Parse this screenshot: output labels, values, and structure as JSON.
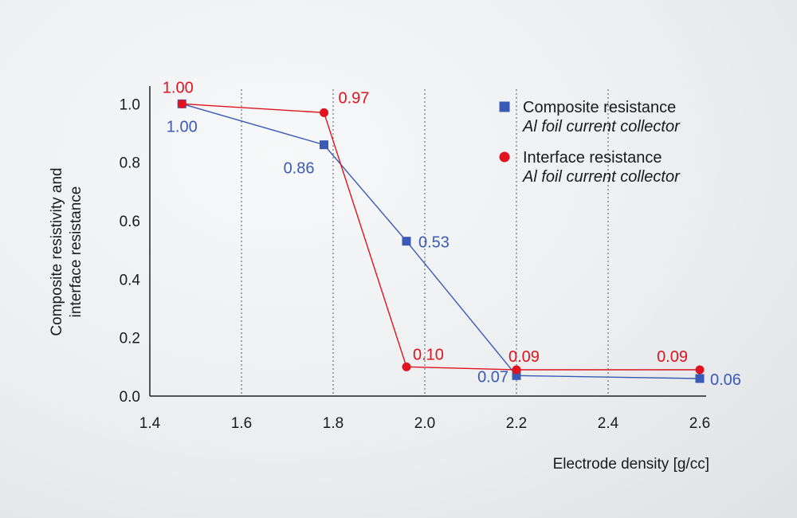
{
  "chart_data": {
    "type": "line",
    "xlabel": "Electrode density [g/cc]",
    "ylabel_lines": [
      "Composite resistivity and",
      "interface resistance"
    ],
    "xlim": [
      1.4,
      2.6
    ],
    "ylim": [
      0.0,
      1.05
    ],
    "xticks": [
      "1.4",
      "1.6",
      "1.8",
      "2.0",
      "2.2",
      "2.4",
      "2.6"
    ],
    "yticks": [
      "0.0",
      "0.2",
      "0.4",
      "0.6",
      "0.8",
      "1.0"
    ],
    "grid": "vertical dotted",
    "legend_position": "top-right",
    "series": [
      {
        "name": "Composite resistance",
        "subtitle": "Al foil current collector",
        "marker": "square",
        "color": "#3a5bb5",
        "x": [
          1.47,
          1.78,
          1.96,
          2.2,
          2.6
        ],
        "y": [
          1.0,
          0.86,
          0.53,
          0.07,
          0.06
        ],
        "labels": [
          "1.00",
          "0.86",
          "0.53",
          "0.07",
          "0.06"
        ]
      },
      {
        "name": "Interface resistance",
        "subtitle": "Al foil current collector",
        "marker": "circle",
        "color": "#e0131f",
        "x": [
          1.47,
          1.78,
          1.96,
          2.2,
          2.6
        ],
        "y": [
          1.0,
          0.97,
          0.1,
          0.09,
          0.09
        ],
        "labels": [
          "1.00",
          "0.97",
          "0.10",
          "0.09",
          "0.09"
        ]
      }
    ]
  }
}
